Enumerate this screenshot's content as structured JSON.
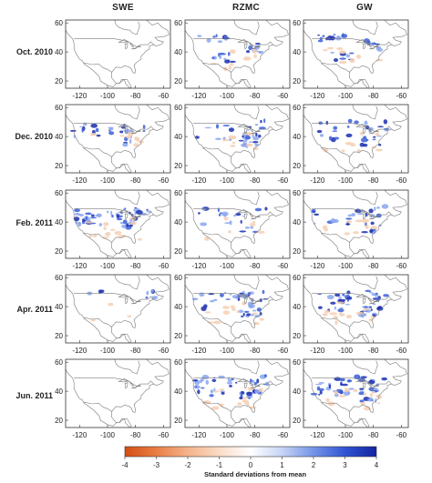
{
  "columns": [
    "SWE",
    "RZMC",
    "GW"
  ],
  "rows": [
    "Oct. 2010",
    "Dec. 2010",
    "Feb. 2011",
    "Apr. 2011",
    "Jun. 2011"
  ],
  "x_ticks": [
    "-120",
    "-100",
    "-80",
    "-60"
  ],
  "y_ticks": [
    "60",
    "40",
    "20"
  ],
  "colorbar": {
    "ticks": [
      "-4",
      "-3",
      "-2",
      "-1",
      "0",
      "1",
      "2",
      "3",
      "4"
    ],
    "label": "Standard deviations from mean",
    "colors": [
      "#d9531e",
      "#eb8d5a",
      "#f6c6a4",
      "#fbe8dc",
      "#ffffff",
      "#cdd9f7",
      "#7d9bea",
      "#3b5fd8",
      "#1a2fb0"
    ]
  },
  "anomaly_intensity": {
    "SWE": [
      0.0,
      0.45,
      0.85,
      0.15,
      0.0
    ],
    "RZMC": [
      0.45,
      0.55,
      0.35,
      0.7,
      0.75
    ],
    "GW": [
      0.45,
      0.5,
      0.5,
      0.75,
      0.8
    ]
  }
}
